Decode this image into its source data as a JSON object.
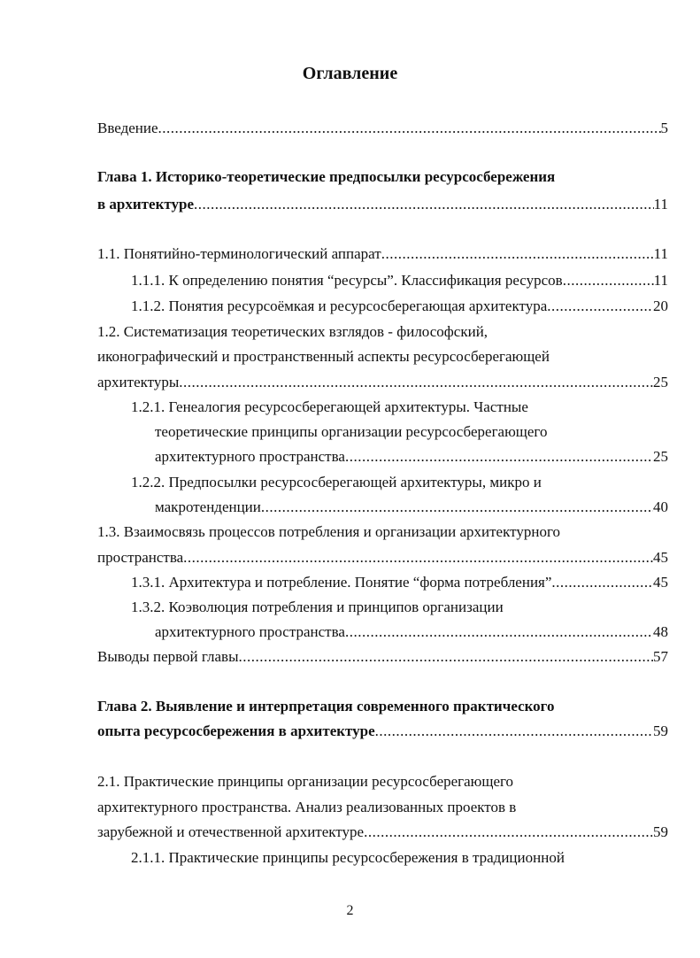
{
  "title": "Оглавление",
  "entries": [
    {
      "text": "Введение",
      "page": "5"
    },
    {
      "text": "Глава 1. Историко-теоретические предпосылки ресурсосбережения"
    },
    {
      "text": "в архитектуре",
      "page": "11"
    },
    {
      "text": "1.1. Понятийно-терминологический аппарат",
      "page": "11"
    },
    {
      "text": "1.1.1. К определению понятия “ресурсы”. Классификация ресурсов",
      "page": "11"
    },
    {
      "text": "1.1.2. Понятия ресурсоёмкая и ресурсосберегающая архитектура",
      "page": "20"
    },
    {
      "text": "1.2. Систематизация теоретических взглядов - философский,"
    },
    {
      "text": "иконографический и пространственный аспекты ресурсосберегающей"
    },
    {
      "text": "архитектуры",
      "page": "25"
    },
    {
      "text": "1.2.1. Генеалогия ресурсосберегающей архитектуры. Частные"
    },
    {
      "text": "теоретические принципы организации ресурсосберегающего"
    },
    {
      "text": "архитектурного пространства",
      "page": "25"
    },
    {
      "text": "1.2.2. Предпосылки ресурсосберегающей архитектуры, микро и"
    },
    {
      "text": "макротенденции",
      "page": "40"
    },
    {
      "text": "1.3. Взаимосвязь процессов потребления и организации архитектурного"
    },
    {
      "text": "пространства",
      "page": "45"
    },
    {
      "text": "1.3.1. Архитектура и потребление. Понятие “форма потребления”",
      "page": "45"
    },
    {
      "text": "1.3.2. Коэволюция потребления и принципов организации"
    },
    {
      "text": "архитектурного пространства",
      "page": "48"
    },
    {
      "text": "Выводы первой главы",
      "page": "57"
    },
    {
      "text": "Глава 2. Выявление и интерпретация современного практического"
    },
    {
      "text": "опыта ресурсосбережения в архитектуре",
      "page": "59"
    },
    {
      "text": "2.1. Практические принципы организации ресурсосберегающего"
    },
    {
      "text": "архитектурного пространства. Анализ реализованных проектов в"
    },
    {
      "text": "зарубежной и отечественной архитектуре",
      "page": "59"
    },
    {
      "text": "2.1.1. Практические принципы ресурсосбережения в традиционной"
    }
  ],
  "page_number": "2"
}
